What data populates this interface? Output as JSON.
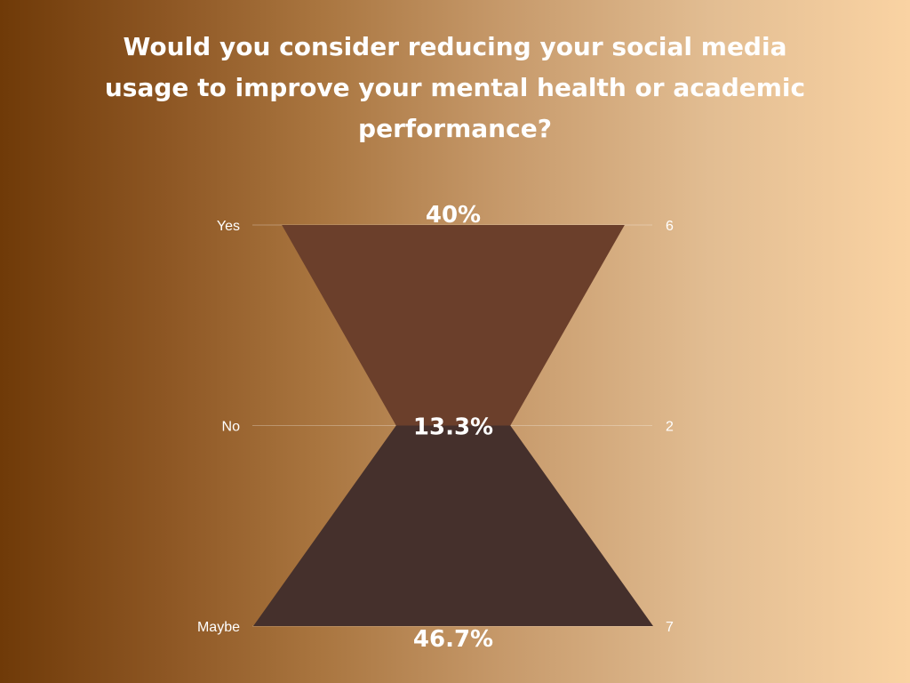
{
  "chart_data": {
    "type": "funnel",
    "title": "Would you consider reducing your social media usage to improve your mental health or academic performance?",
    "categories": [
      "Yes",
      "No",
      "Maybe"
    ],
    "values": [
      6,
      2,
      7
    ],
    "percent_labels": [
      "40%",
      "13.3%",
      "46.7%"
    ],
    "colors": [
      "#6b3f2b",
      "#45302c"
    ],
    "grid": true,
    "legend": "none"
  }
}
